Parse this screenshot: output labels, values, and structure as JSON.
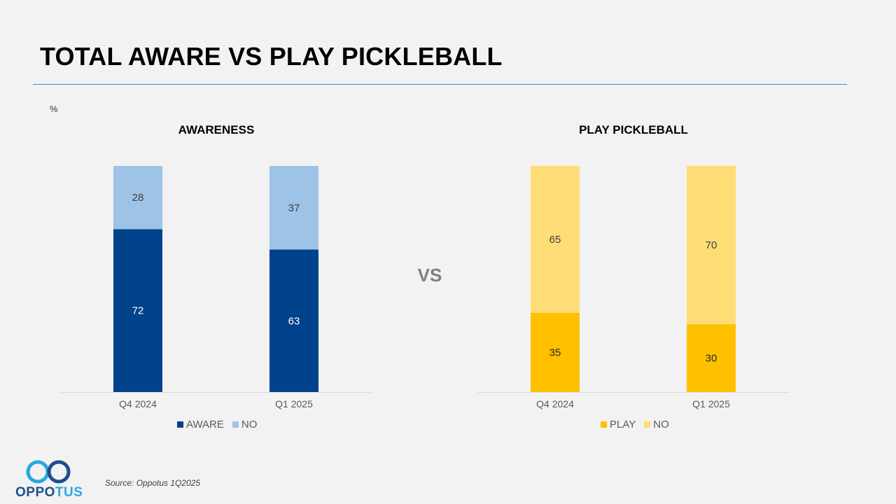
{
  "slide": {
    "title": "TOTAL AWARE VS PLAY PICKLEBALL",
    "unit_label": "%",
    "vs_label": "VS",
    "source": "Source: Oppotus 1Q2025",
    "logo_text_part1": "OPPO",
    "logo_text_part2": "TUS"
  },
  "colors": {
    "aware": "#00428c",
    "aware_no": "#9dc3e6",
    "play": "#ffc000",
    "play_no": "#ffdd76",
    "rule": "#3d8fc7",
    "logo_dark": "#1a4f8b",
    "logo_light": "#2aa8e0"
  },
  "chart_data": [
    {
      "type": "bar",
      "stacked": true,
      "title": "AWARENESS",
      "categories": [
        "Q4 2024",
        "Q1 2025"
      ],
      "series": [
        {
          "name": "AWARE",
          "values": [
            72,
            63
          ],
          "color": "#00428c",
          "label_color": "#ffffff"
        },
        {
          "name": "NO",
          "values": [
            28,
            37
          ],
          "color": "#9dc3e6",
          "label_color": "#404040"
        }
      ],
      "ylim": [
        0,
        100
      ],
      "legend": "bottom"
    },
    {
      "type": "bar",
      "stacked": true,
      "title": "PLAY PICKLEBALL",
      "categories": [
        "Q4 2024",
        "Q1 2025"
      ],
      "series": [
        {
          "name": "PLAY",
          "values": [
            35,
            30
          ],
          "color": "#ffc000",
          "label_color": "#262626"
        },
        {
          "name": "NO",
          "values": [
            65,
            70
          ],
          "color": "#ffdd76",
          "label_color": "#404040"
        }
      ],
      "ylim": [
        0,
        100
      ],
      "legend": "bottom"
    }
  ]
}
